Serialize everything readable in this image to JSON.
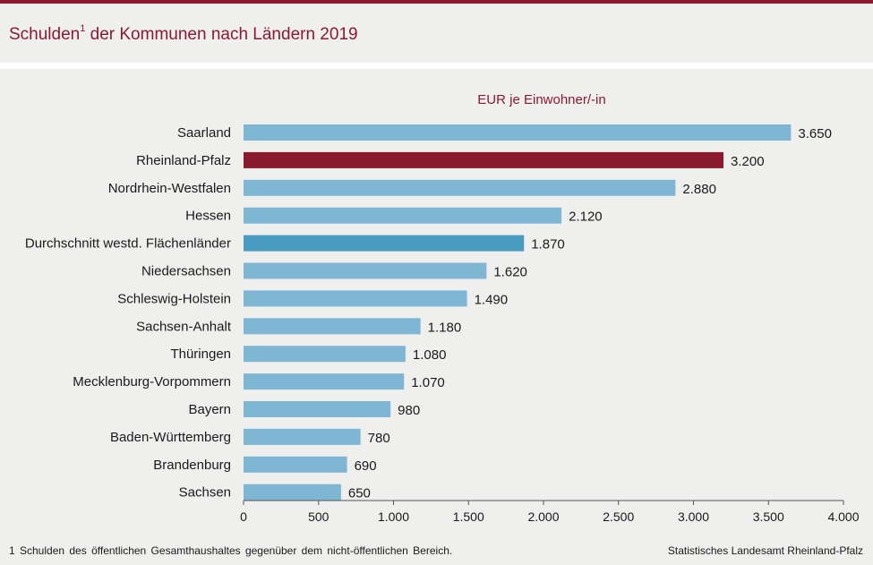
{
  "header": {
    "title_main": "Schulden",
    "title_sup": "1",
    "title_rest": " der Kommunen nach Ländern 2019"
  },
  "footer": {
    "footnote": "1 Schulden des öffentlichen Gesamthaushaltes gegenüber dem nicht-öffentlichen Bereich.",
    "source": "Statistisches Landesamt Rheinland-Pfalz"
  },
  "colors": {
    "default_bar": "#7fb6d4",
    "highlight_bar": "#8b1a2f",
    "average_bar": "#4a9bc1",
    "accent": "#8b1a2f"
  },
  "chart_data": {
    "type": "bar",
    "orientation": "horizontal",
    "title": "Schulden der Kommunen nach Ländern 2019",
    "unit_label": "EUR je Einwohner/-in",
    "categories": [
      "Saarland",
      "Rheinland-Pfalz",
      "Nordrhein-Westfalen",
      "Hessen",
      "Durchschnitt westd. Flächenländer",
      "Niedersachsen",
      "Schleswig-Holstein",
      "Sachsen-Anhalt",
      "Thüringen",
      "Mecklenburg-Vorpommern",
      "Bayern",
      "Baden-Württemberg",
      "Brandenburg",
      "Sachsen"
    ],
    "values": [
      3650,
      3200,
      2880,
      2120,
      1870,
      1620,
      1490,
      1180,
      1080,
      1070,
      980,
      780,
      690,
      650
    ],
    "value_labels": [
      "3.650",
      "3.200",
      "2.880",
      "2.120",
      "1.870",
      "1.620",
      "1.490",
      "1.180",
      "1.080",
      "1.070",
      "980",
      "780",
      "690",
      "650"
    ],
    "bar_kind": [
      "default",
      "highlight",
      "default",
      "default",
      "average",
      "default",
      "default",
      "default",
      "default",
      "default",
      "default",
      "default",
      "default",
      "default"
    ],
    "xlim": [
      0,
      4000
    ],
    "xticks": [
      0,
      500,
      1000,
      1500,
      2000,
      2500,
      3000,
      3500,
      4000
    ],
    "xtick_labels": [
      "0",
      "500",
      "1.000",
      "1.500",
      "2.000",
      "2.500",
      "3.000",
      "3.500",
      "4.000"
    ],
    "grid": false,
    "legend": false
  }
}
